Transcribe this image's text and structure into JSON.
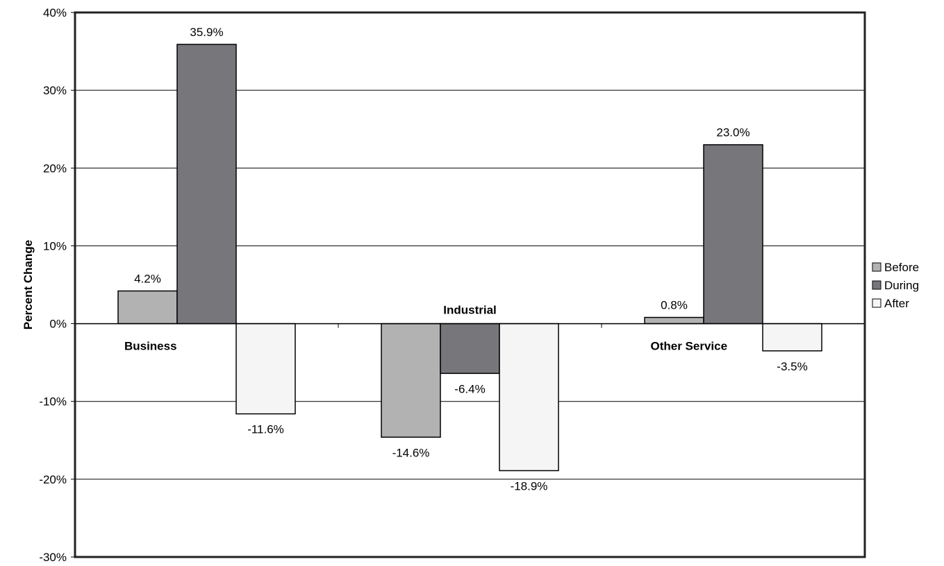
{
  "chart_data": {
    "type": "bar",
    "ylabel": "Percent Change",
    "ylim": [
      -30,
      40
    ],
    "y_ticks": [
      40,
      30,
      20,
      10,
      0,
      -10,
      -20,
      -30
    ],
    "y_tick_labels": [
      "40%",
      "30%",
      "20%",
      "10%",
      "0%",
      "-10%",
      "-20%",
      "-30%"
    ],
    "grid": true,
    "legend_position": "right",
    "categories": [
      "Business",
      "Industrial",
      "Other Service"
    ],
    "series": [
      {
        "name": "Before",
        "color": "#b2b2b2",
        "values": [
          4.2,
          -14.6,
          0.8
        ],
        "labels": [
          "4.2%",
          "-14.6%",
          "0.8%"
        ]
      },
      {
        "name": "During",
        "color": "#76767b",
        "values": [
          35.9,
          -6.4,
          23.0
        ],
        "labels": [
          "35.9%",
          "-6.4%",
          "23.0%"
        ]
      },
      {
        "name": "After",
        "color": "#f5f5f5",
        "values": [
          -11.6,
          -18.9,
          -3.5
        ],
        "labels": [
          "-11.6%",
          "-18.9%",
          "-3.5%"
        ]
      }
    ]
  }
}
